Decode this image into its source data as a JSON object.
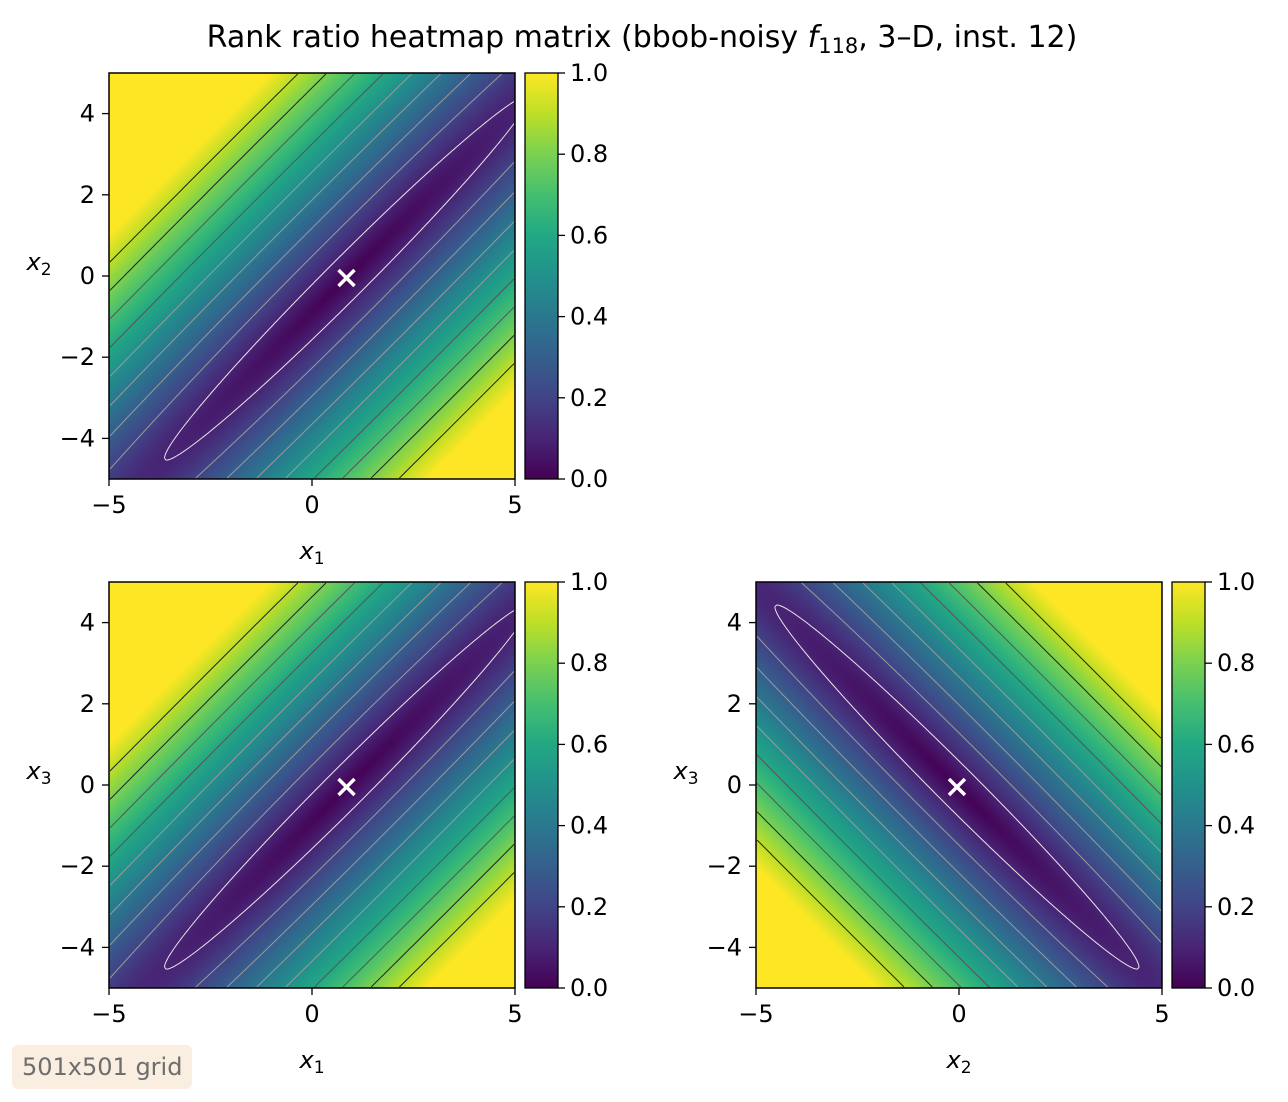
{
  "chart_data": {
    "title": "Rank ratio heatmap matrix (bbob-noisy f118, 3–D, inst. 12)",
    "title_parts": {
      "before": "Rank ratio heatmap matrix (bbob-noisy ",
      "func": "f",
      "func_sub": "118",
      "after": ", 3–D, inst. 12)"
    },
    "colormap": "viridis",
    "colorbar": {
      "range": [
        0.0,
        1.0
      ],
      "ticks": [
        "0.0",
        "0.2",
        "0.4",
        "0.6",
        "0.8",
        "1.0"
      ]
    },
    "note": "501x501 grid",
    "panels": [
      {
        "type": "heatmap",
        "xvar": "x",
        "xvar_sub": "1",
        "yvar": "x",
        "yvar_sub": "2",
        "xlim": [
          -5,
          5
        ],
        "ylim": [
          -5,
          5
        ],
        "xticks": [
          "−5",
          "0",
          "5"
        ],
        "yticks": [
          "−4",
          "−2",
          "0",
          "2",
          "4"
        ],
        "optimum_marker": {
          "x": 0.85,
          "y": -0.05
        },
        "valley_direction": "diagonal-up",
        "contour_levels": [
          0.1,
          0.2,
          0.3,
          0.4,
          0.5,
          0.6,
          0.7,
          0.8,
          0.9
        ]
      },
      {
        "type": "heatmap",
        "xvar": "x",
        "xvar_sub": "1",
        "yvar": "x",
        "yvar_sub": "3",
        "xlim": [
          -5,
          5
        ],
        "ylim": [
          -5,
          5
        ],
        "xticks": [
          "−5",
          "0",
          "5"
        ],
        "yticks": [
          "−4",
          "−2",
          "0",
          "2",
          "4"
        ],
        "optimum_marker": {
          "x": 0.85,
          "y": -0.05
        },
        "valley_direction": "diagonal-up",
        "contour_levels": [
          0.1,
          0.2,
          0.3,
          0.4,
          0.5,
          0.6,
          0.7,
          0.8,
          0.9
        ]
      },
      {
        "type": "heatmap",
        "xvar": "x",
        "xvar_sub": "2",
        "yvar": "x",
        "yvar_sub": "3",
        "xlim": [
          -5,
          5
        ],
        "ylim": [
          -5,
          5
        ],
        "xticks": [
          "−5",
          "0",
          "5"
        ],
        "yticks": [
          "−4",
          "−2",
          "0",
          "2",
          "4"
        ],
        "optimum_marker": {
          "x": -0.05,
          "y": -0.05
        },
        "valley_direction": "diagonal-down",
        "contour_levels": [
          0.1,
          0.2,
          0.3,
          0.4,
          0.5,
          0.6,
          0.7,
          0.8,
          0.9
        ]
      }
    ]
  }
}
